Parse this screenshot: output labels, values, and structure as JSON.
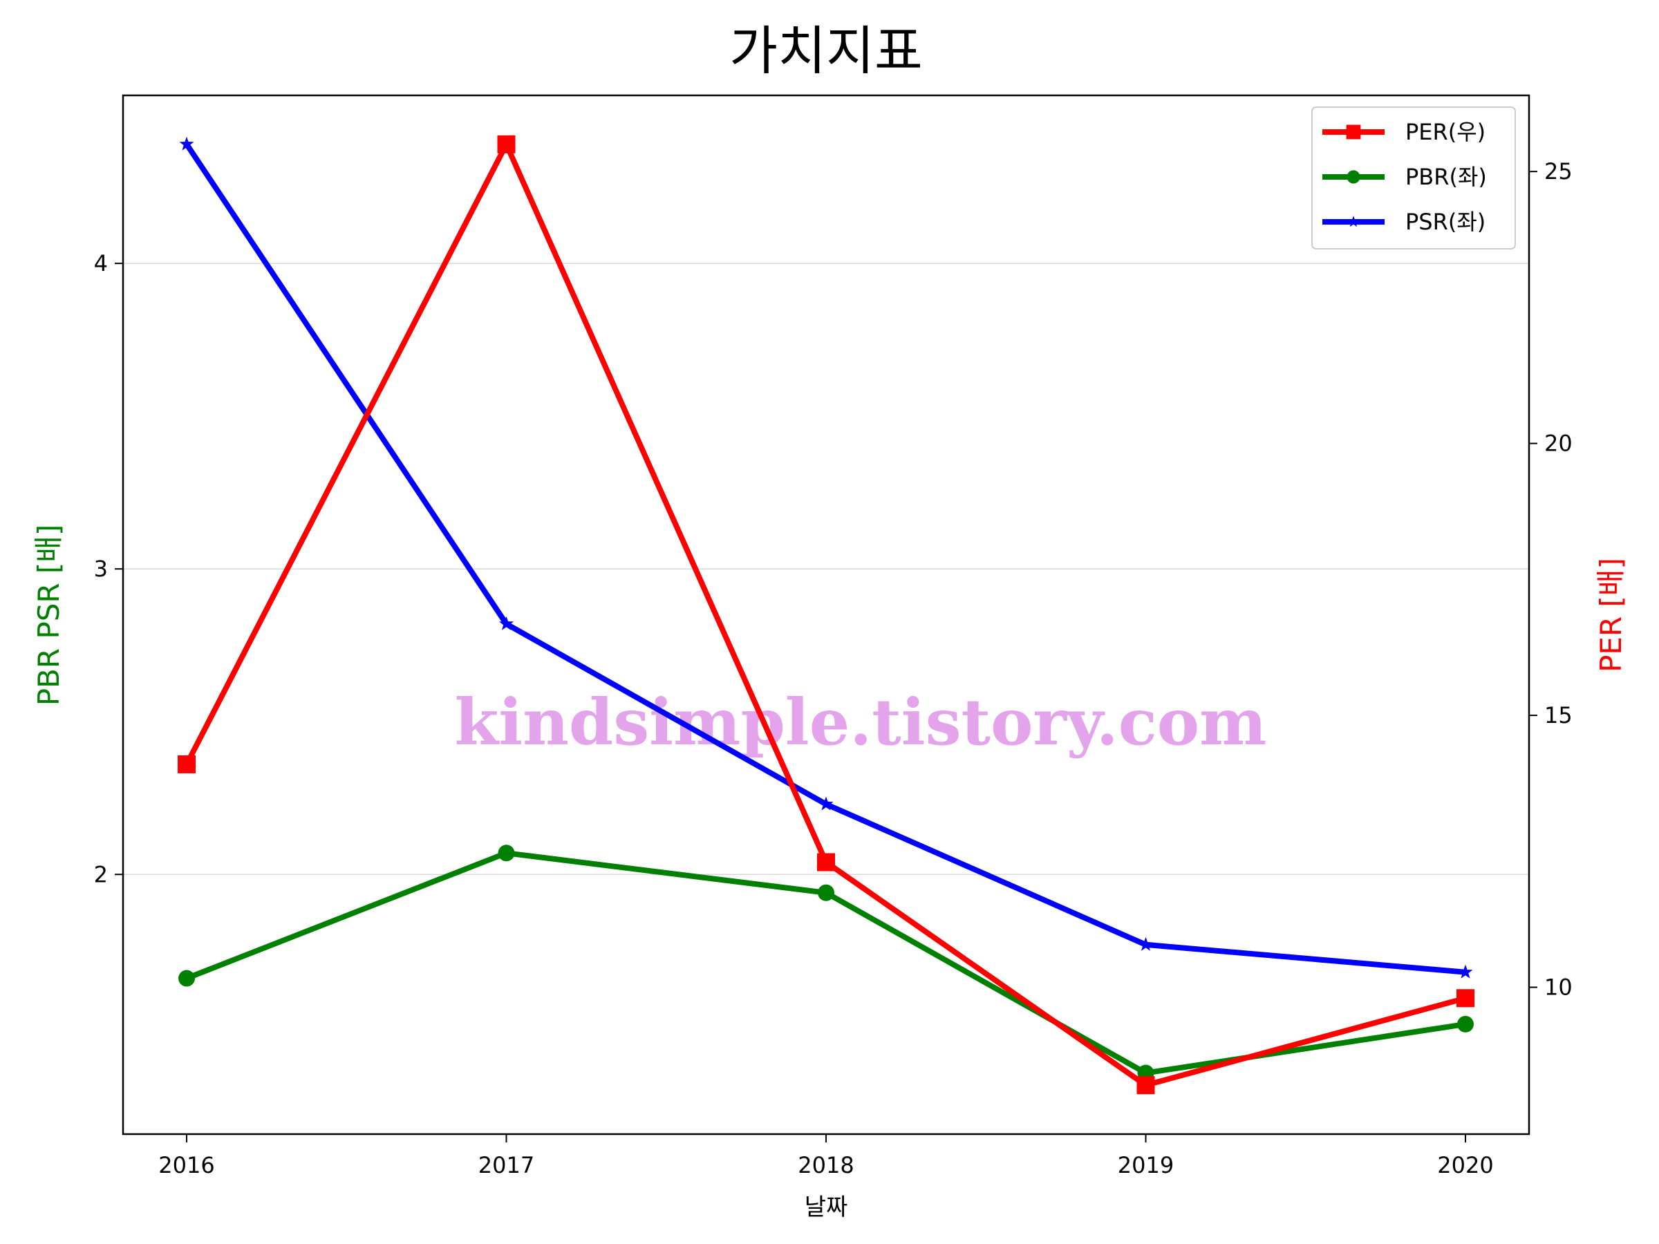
{
  "chart_data": {
    "type": "line",
    "title": "가치지표",
    "xlabel": "날짜",
    "ylabel_left": "PBR PSR [배]",
    "ylabel_right": "PER [배]",
    "x": [
      "2016",
      "2017",
      "2018",
      "2019",
      "2020"
    ],
    "left_axis": {
      "ylim": [
        1.15,
        4.55
      ],
      "ticks": [
        2,
        3,
        4
      ],
      "grid": true
    },
    "right_axis": {
      "ylim": [
        7.3,
        26.4
      ],
      "ticks": [
        10,
        15,
        20,
        25
      ]
    },
    "series": [
      {
        "name": "PER(우)",
        "axis": "right",
        "color": "#ff0000",
        "marker": "square",
        "values": [
          14.1,
          25.5,
          12.3,
          8.2,
          9.8
        ]
      },
      {
        "name": "PBR(좌)",
        "axis": "left",
        "color": "#008000",
        "marker": "circle",
        "values": [
          1.66,
          2.07,
          1.94,
          1.35,
          1.51
        ]
      },
      {
        "name": "PSR(좌)",
        "axis": "left",
        "color": "#0000ff",
        "marker": "star",
        "values": [
          4.39,
          2.82,
          2.23,
          1.77,
          1.68
        ]
      }
    ],
    "legend": {
      "placement": "top-right"
    },
    "watermark": "kindsimple.tistory.com",
    "left_label_color": "#008000",
    "right_label_color": "#ff0000"
  }
}
